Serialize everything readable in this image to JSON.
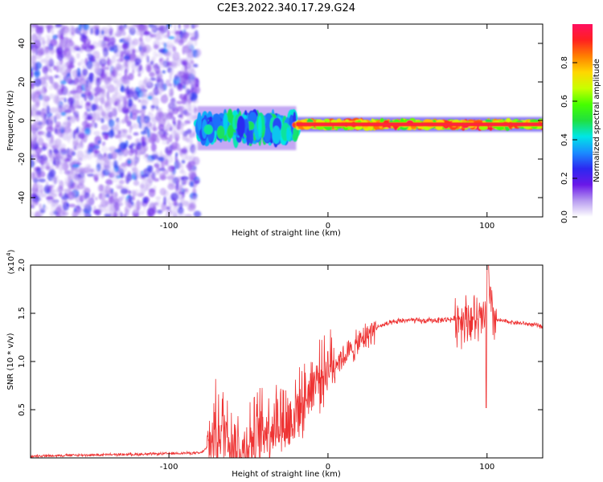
{
  "title": "C2E3.2022.340.17.29.G24",
  "chart_data": [
    {
      "type": "heatmap",
      "xlabel": "Height of straight line (km)",
      "ylabel": "Frequency (Hz)",
      "xlim": [
        -187,
        135
      ],
      "ylim": [
        -50,
        50
      ],
      "xticks": [
        -100,
        0,
        100
      ],
      "yticks": [
        -40,
        -20,
        0,
        20,
        40
      ],
      "colorbar": {
        "label": "Normalized spectral amplitude",
        "range": [
          0,
          1
        ],
        "ticks": [
          0.0,
          0.2,
          0.4,
          0.6,
          0.8
        ],
        "colors": [
          "#ffffff",
          "#b89cf0",
          "#6a18e8",
          "#2c28f0",
          "#1a8cff",
          "#00e6e6",
          "#20e040",
          "#46ff00",
          "#c8ff00",
          "#ffd700",
          "#ff8000",
          "#ff2020",
          "#ff1060"
        ]
      },
      "regions": [
        {
          "x": [
            -187,
            -82
          ],
          "description": "noise",
          "freq_range": [
            -50,
            50
          ],
          "amplitude": 0.2
        },
        {
          "x": [
            -82,
            -20
          ],
          "freq_center": -4,
          "freq_halfwidth": 6,
          "amplitude": 0.45
        },
        {
          "x": [
            -20,
            135
          ],
          "freq_center": -2,
          "freq_halfwidth": 2,
          "amplitude": 0.9
        }
      ]
    },
    {
      "type": "line",
      "xlabel": "Height of straight line (km)",
      "ylabel": "SNR (10 * v/v)",
      "y_scale_label": "(x10",
      "y_scale_exp": "4",
      "y_scale_close": ")",
      "xlim": [
        -187,
        135
      ],
      "ylim": [
        0,
        2.0
      ],
      "xticks": [
        -100,
        0,
        100
      ],
      "yticks": [
        0.5,
        1.0,
        1.5,
        2.0
      ],
      "ytick_labels": [
        "0.5",
        "1.0",
        "1.5",
        "2.0"
      ],
      "color": "#ee3333",
      "series": [
        {
          "x": [
            -187,
            -170,
            -150,
            -130,
            -110,
            -90,
            -80,
            -75,
            -72,
            -68,
            -65,
            -62,
            -58,
            -55,
            -52,
            -50,
            -46,
            -44,
            -40,
            -35,
            -30,
            -25,
            -22,
            -18,
            -15,
            -12,
            -10,
            -5,
            0,
            5,
            10,
            15,
            20,
            25,
            30,
            35,
            40,
            45,
            50,
            60,
            70,
            80,
            85,
            88,
            92,
            95,
            98,
            100,
            101,
            103,
            106,
            110,
            120,
            130,
            135
          ],
          "y": [
            0.02,
            0.025,
            0.03,
            0.035,
            0.04,
            0.05,
            0.05,
            0.12,
            0.25,
            0.3,
            0.32,
            0.25,
            0.12,
            0.06,
            0.05,
            0.2,
            0.15,
            0.25,
            0.3,
            0.35,
            0.42,
            0.35,
            0.45,
            0.55,
            0.6,
            0.7,
            0.78,
            0.85,
            0.95,
            1.0,
            1.05,
            1.12,
            1.2,
            1.28,
            1.35,
            1.38,
            1.4,
            1.42,
            1.43,
            1.42,
            1.43,
            1.44,
            1.45,
            1.45,
            1.43,
            1.4,
            1.45,
            1.5,
            1.75,
            1.5,
            1.43,
            1.42,
            1.4,
            1.38,
            1.36
          ]
        }
      ]
    }
  ]
}
